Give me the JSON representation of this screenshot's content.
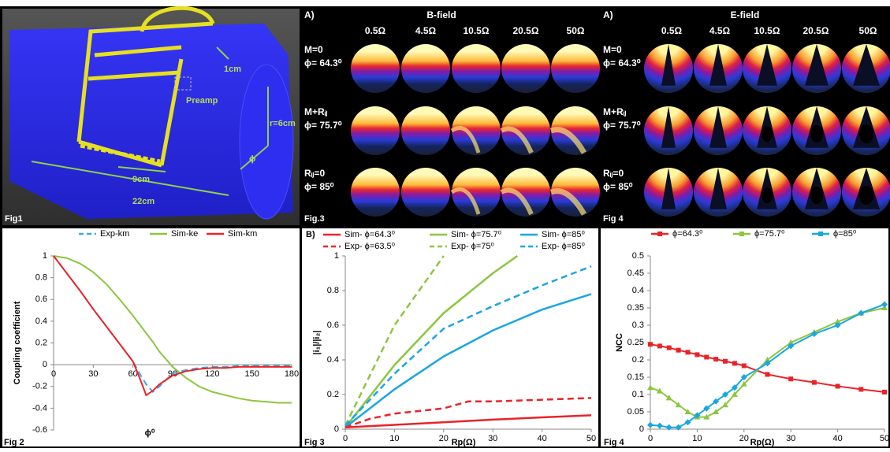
{
  "fig1": {
    "labels": {
      "coil_gap": "1cm",
      "preamp": "Preamp",
      "radius": "r=6cm",
      "angle": "ϕ",
      "coil_width": "9cm",
      "length": "22cm"
    },
    "caption": "Fig1"
  },
  "b_field": {
    "panel": "A)",
    "title": "B-field",
    "columns": [
      "0.5Ω",
      "4.5Ω",
      "10.5Ω",
      "20.5Ω",
      "50Ω"
    ],
    "rows": [
      {
        "condition": "M=0",
        "angle": "ϕ= 64.3⁰"
      },
      {
        "condition": "M+Rᵢⱼ",
        "angle": "ϕ= 75.7⁰"
      },
      {
        "condition": "Rᵢⱼ=0",
        "angle": "ϕ= 85⁰"
      }
    ],
    "caption": "Fig.3"
  },
  "e_field": {
    "panel": "A)",
    "title": "E-field",
    "columns": [
      "0.5Ω",
      "4.5Ω",
      "10.5Ω",
      "20.5Ω",
      "50Ω"
    ],
    "rows": [
      {
        "condition": "M=0",
        "angle": "ϕ= 64.3⁰"
      },
      {
        "condition": "M+Rᵢⱼ",
        "angle": "ϕ= 75.7⁰"
      },
      {
        "condition": "Rᵢⱼ=0",
        "angle": "ϕ= 85⁰"
      }
    ],
    "caption": "Fig 4"
  },
  "chart_data": [
    {
      "type": "line",
      "caption": "Fig 2",
      "x_label": "ϕ⁰",
      "y_label": "Coupling coefficient",
      "x": [
        0,
        10,
        20,
        30,
        40,
        50,
        60,
        65,
        70,
        75,
        80,
        90,
        100,
        110,
        120,
        130,
        140,
        150,
        160,
        170,
        180
      ],
      "xlim": [
        0,
        180
      ],
      "xticks": [
        0,
        30,
        60,
        90,
        120,
        150,
        180
      ],
      "ylim": [
        -0.6,
        1
      ],
      "yticks": [
        -0.6,
        -0.4,
        -0.2,
        0,
        0.2,
        0.4,
        0.6,
        0.8,
        1
      ],
      "series": [
        {
          "name": "Exp-km",
          "color": "#3fa7dc",
          "dashed": true,
          "values": [
            1,
            0.84,
            0.68,
            0.51,
            0.35,
            0.19,
            0.03,
            -0.08,
            -0.18,
            -0.25,
            -0.2,
            -0.08,
            -0.05,
            -0.03,
            -0.02,
            -0.02,
            -0.01,
            -0.01,
            -0.01,
            -0.01,
            -0.01
          ]
        },
        {
          "name": "Sim-ke",
          "color": "#8cc63f",
          "values": [
            1,
            0.98,
            0.93,
            0.85,
            0.74,
            0.6,
            0.45,
            0.37,
            0.29,
            0.21,
            0.12,
            -0.02,
            -0.12,
            -0.2,
            -0.25,
            -0.28,
            -0.31,
            -0.33,
            -0.34,
            -0.35,
            -0.35
          ]
        },
        {
          "name": "Sim-km",
          "color": "#e8242a",
          "values": [
            1,
            0.84,
            0.68,
            0.51,
            0.35,
            0.19,
            0.03,
            -0.12,
            -0.28,
            -0.24,
            -0.18,
            -0.1,
            -0.06,
            -0.04,
            -0.03,
            -0.03,
            -0.02,
            -0.02,
            -0.02,
            -0.02,
            -0.02
          ]
        }
      ]
    },
    {
      "type": "line",
      "panel": "B)",
      "caption": "Fig 3",
      "x_label": "Rp(Ω)",
      "y_label": "|i₁|/|i₂|",
      "xlim": [
        0,
        50
      ],
      "xticks": [
        0,
        10,
        20,
        30,
        40,
        50
      ],
      "ylim": [
        0,
        1
      ],
      "yticks": [
        0,
        0.2,
        0.4,
        0.6,
        0.8,
        1
      ],
      "series": [
        {
          "name": "Sim- ϕ=64.3⁰",
          "color": "#e8242a",
          "x": [
            0,
            10,
            20,
            30,
            40,
            50
          ],
          "values": [
            0.01,
            0.025,
            0.04,
            0.055,
            0.068,
            0.08
          ]
        },
        {
          "name": "Sim- ϕ=75.7⁰",
          "color": "#8cc63f",
          "x": [
            0,
            10,
            20,
            30,
            35
          ],
          "values": [
            0.01,
            0.37,
            0.67,
            0.9,
            1
          ]
        },
        {
          "name": "Sim- ϕ=85⁰",
          "color": "#1aa7e0",
          "x": [
            0,
            10,
            20,
            30,
            40,
            50
          ],
          "values": [
            0.01,
            0.23,
            0.42,
            0.57,
            0.69,
            0.78
          ]
        },
        {
          "name": "Exp- ϕ=63.5⁰",
          "color": "#e8242a",
          "dashed": true,
          "x": [
            0,
            5,
            10,
            20,
            25,
            30,
            40,
            50
          ],
          "values": [
            0.01,
            0.06,
            0.09,
            0.12,
            0.16,
            0.16,
            0.17,
            0.18
          ]
        },
        {
          "name": "Exp- ϕ=75⁰",
          "color": "#8cc63f",
          "dashed": true,
          "x": [
            0,
            10,
            20
          ],
          "values": [
            0.02,
            0.6,
            1
          ]
        },
        {
          "name": "Exp- ϕ=85⁰",
          "color": "#1aa7e0",
          "dashed": true,
          "x": [
            0,
            10,
            20,
            30,
            40,
            50
          ],
          "values": [
            0.02,
            0.32,
            0.58,
            0.71,
            0.83,
            0.94
          ]
        }
      ]
    },
    {
      "type": "line",
      "caption": "Fig 4",
      "x_label": "Rp(Ω)",
      "y_label": "NCC",
      "x": [
        0,
        2,
        4,
        6,
        8,
        10,
        12,
        14,
        16,
        18,
        20,
        25,
        30,
        35,
        40,
        45,
        50
      ],
      "xlim": [
        0,
        50
      ],
      "xticks": [
        0,
        10,
        20,
        30,
        40,
        50
      ],
      "ylim": [
        0,
        0.5
      ],
      "yticks": [
        0,
        0.05,
        0.1,
        0.15,
        0.2,
        0.25,
        0.3,
        0.35,
        0.4,
        0.45,
        0.5
      ],
      "series": [
        {
          "name": "ϕ=64.3⁰",
          "color": "#e8242a",
          "marker": "square",
          "values": [
            0.245,
            0.24,
            0.235,
            0.228,
            0.222,
            0.215,
            0.208,
            0.202,
            0.196,
            0.19,
            0.183,
            0.158,
            0.145,
            0.135,
            0.124,
            0.115,
            0.107
          ]
        },
        {
          "name": "ϕ=75.7⁰",
          "color": "#8cc63f",
          "marker": "triangle",
          "values": [
            0.12,
            0.11,
            0.09,
            0.07,
            0.05,
            0.035,
            0.035,
            0.05,
            0.07,
            0.1,
            0.13,
            0.2,
            0.25,
            0.28,
            0.31,
            0.335,
            0.35
          ]
        },
        {
          "name": "ϕ=85⁰",
          "color": "#1aa7e0",
          "marker": "diamond",
          "values": [
            0.012,
            0.01,
            0.005,
            0.005,
            0.02,
            0.04,
            0.06,
            0.08,
            0.1,
            0.12,
            0.15,
            0.19,
            0.24,
            0.275,
            0.3,
            0.335,
            0.36
          ]
        }
      ]
    }
  ]
}
